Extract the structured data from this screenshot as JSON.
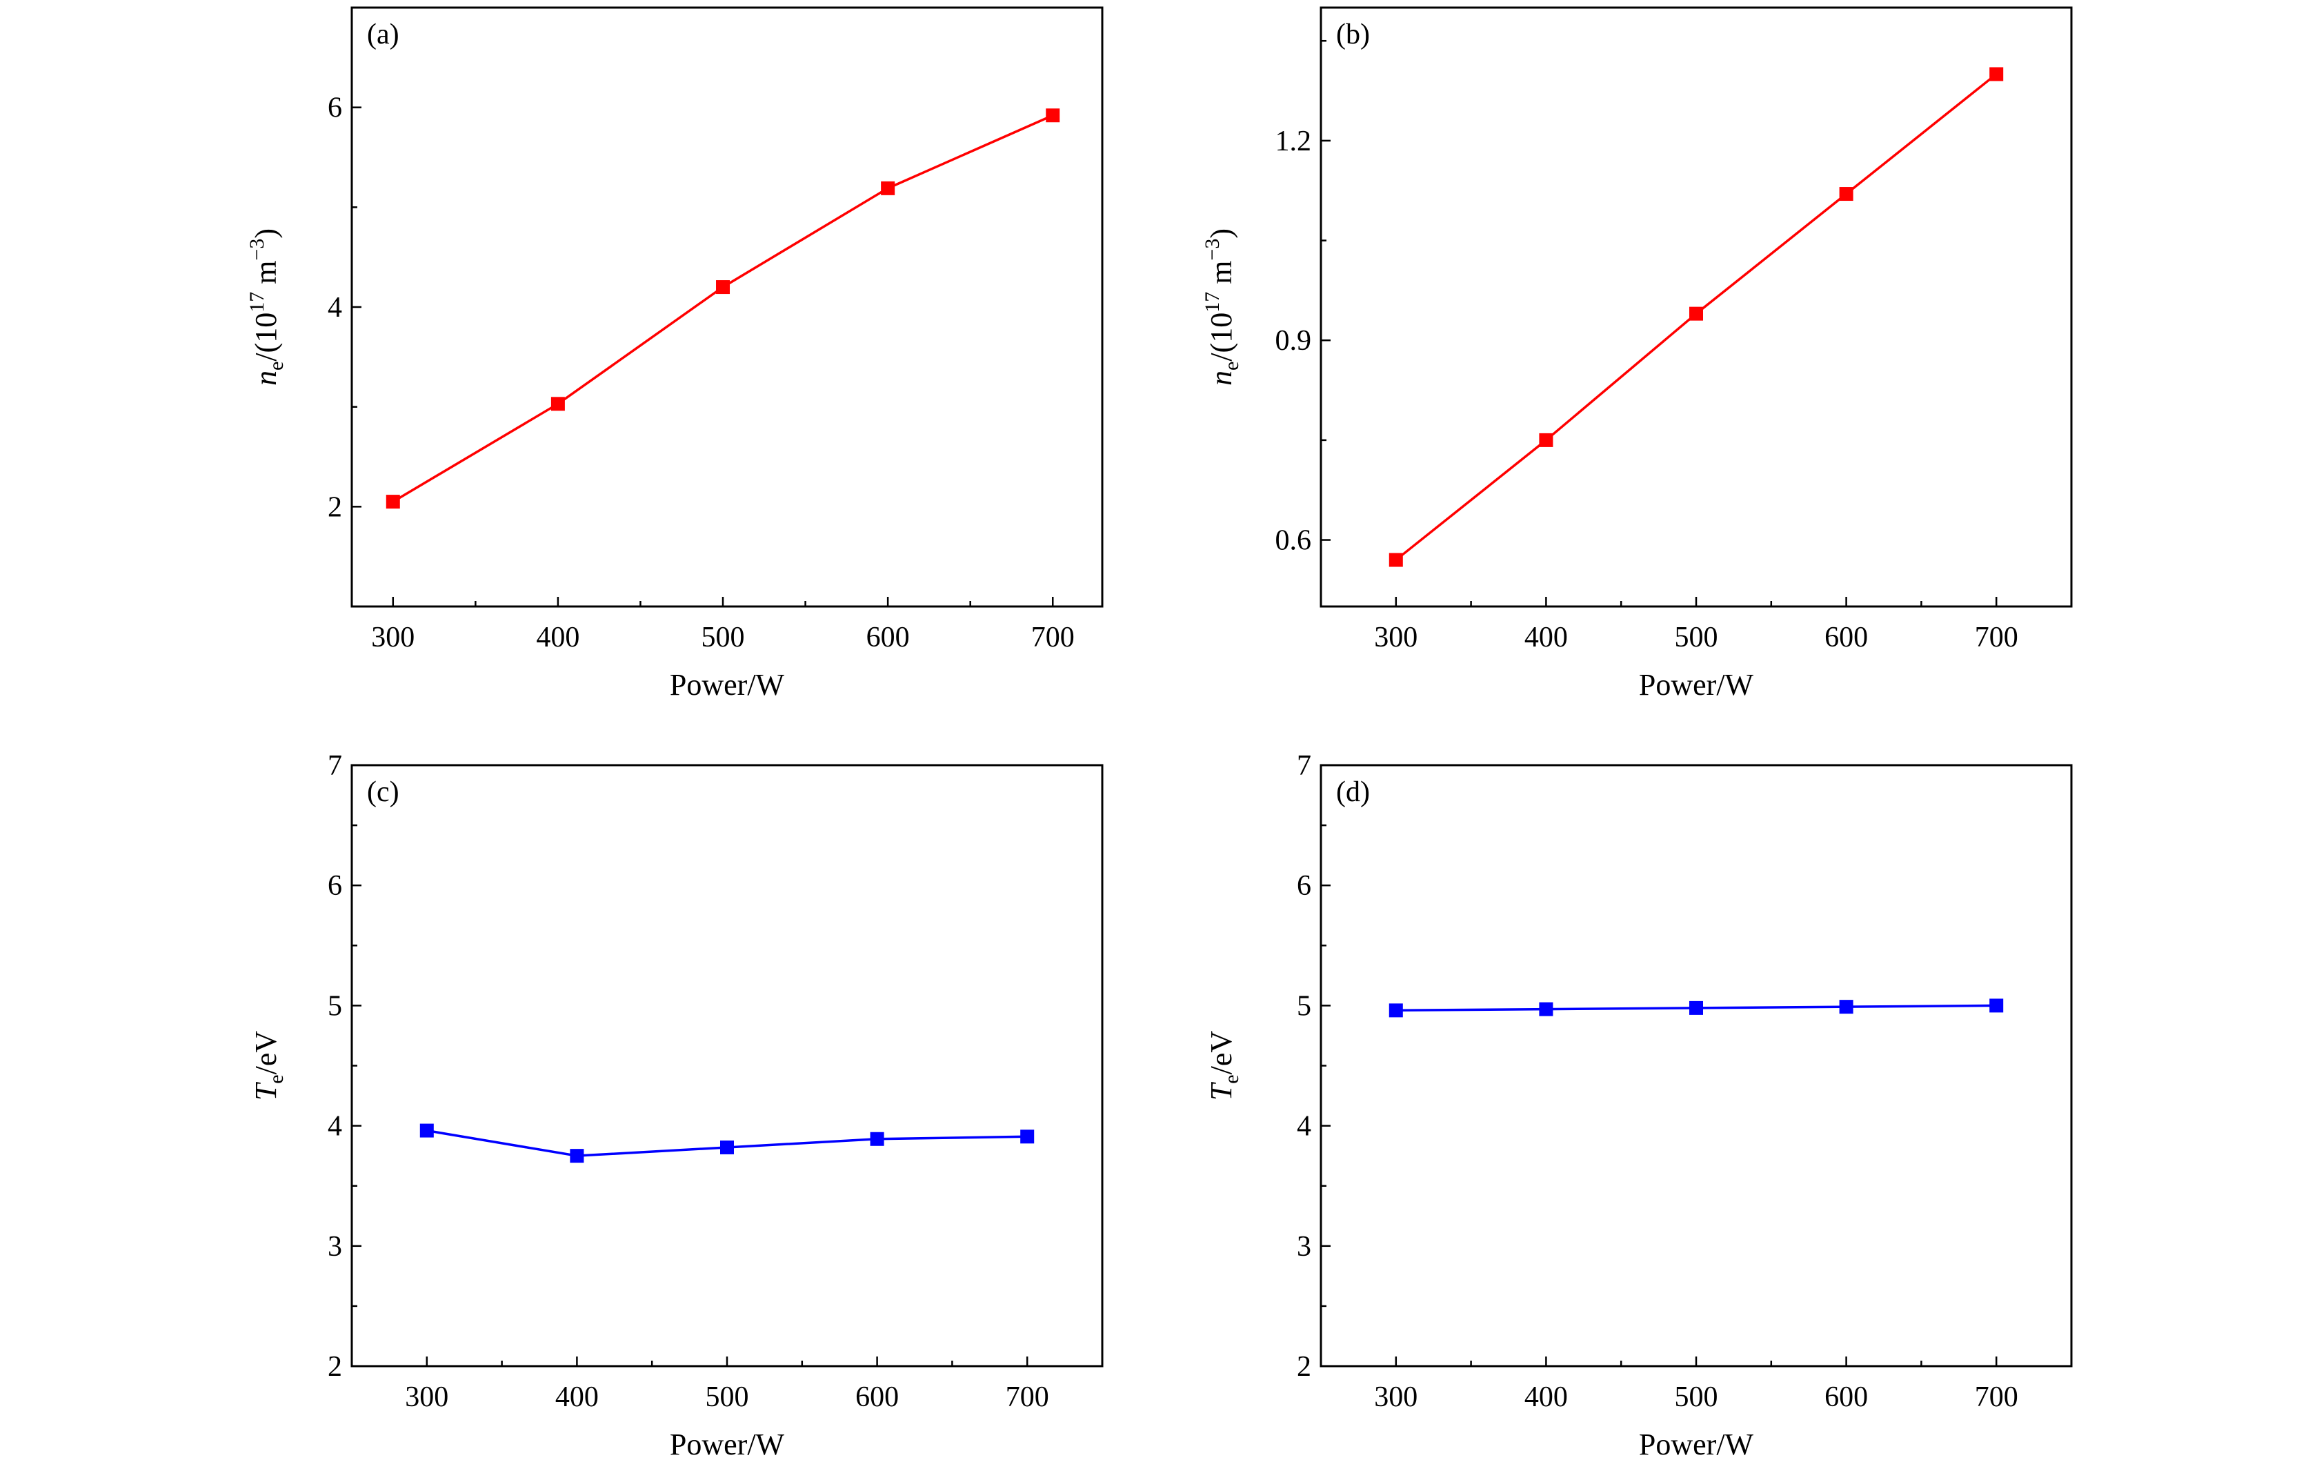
{
  "chart_data": [
    {
      "type": "line",
      "panel_label": "(a)",
      "x": [
        300,
        400,
        500,
        600,
        700
      ],
      "series": [
        {
          "values": [
            2.05,
            3.03,
            4.2,
            5.19,
            5.92
          ],
          "color": "#ff0000",
          "marker": "square"
        }
      ],
      "xlabel": "Power/W",
      "ylabel_parts": [
        {
          "t": "n",
          "style": "italic"
        },
        {
          "t": "e",
          "style": "sub"
        },
        {
          "t": "/(10"
        },
        {
          "t": "17",
          "style": "sup"
        },
        {
          "t": " m"
        },
        {
          "t": "−3",
          "style": "sup"
        },
        {
          "t": ")"
        }
      ],
      "xlim": [
        275,
        730
      ],
      "ylim": [
        1,
        7
      ],
      "xticks": [
        300,
        400,
        500,
        600,
        700
      ],
      "xminor": [
        350,
        450,
        550,
        650
      ],
      "yticks": [
        2,
        4,
        6
      ],
      "yminor": [
        3,
        5
      ],
      "ytick_labels": [
        "2",
        "4",
        "6"
      ],
      "grid": false
    },
    {
      "type": "line",
      "panel_label": "(b)",
      "x": [
        300,
        400,
        500,
        600,
        700
      ],
      "series": [
        {
          "values": [
            0.57,
            0.75,
            0.94,
            1.12,
            1.3
          ],
          "color": "#ff0000",
          "marker": "square"
        }
      ],
      "xlabel": "Power/W",
      "ylabel_parts": [
        {
          "t": "n",
          "style": "italic"
        },
        {
          "t": "e",
          "style": "sub"
        },
        {
          "t": "/(10"
        },
        {
          "t": "17",
          "style": "sup"
        },
        {
          "t": " m"
        },
        {
          "t": "−3",
          "style": "sup"
        },
        {
          "t": ")"
        }
      ],
      "xlim": [
        250,
        750
      ],
      "ylim": [
        0.5,
        1.4
      ],
      "xticks": [
        300,
        400,
        500,
        600,
        700
      ],
      "xminor": [
        350,
        450,
        550,
        650
      ],
      "yticks": [
        0.6,
        0.9,
        1.2
      ],
      "yminor": [
        0.75,
        1.05,
        1.35
      ],
      "ytick_labels": [
        "0.6",
        "0.9",
        "1.2"
      ],
      "grid": false
    },
    {
      "type": "line",
      "panel_label": "(c)",
      "x": [
        300,
        400,
        500,
        600,
        700
      ],
      "series": [
        {
          "values": [
            3.96,
            3.75,
            3.82,
            3.89,
            3.91
          ],
          "color": "#0000ff",
          "marker": "square"
        }
      ],
      "xlabel": "Power/W",
      "ylabel_parts": [
        {
          "t": "T",
          "style": "italic"
        },
        {
          "t": "e",
          "style": "sub"
        },
        {
          "t": "/eV"
        }
      ],
      "xlim": [
        250,
        750
      ],
      "ylim": [
        2,
        7
      ],
      "xticks": [
        300,
        400,
        500,
        600,
        700
      ],
      "xminor": [
        350,
        450,
        550,
        650
      ],
      "yticks": [
        2,
        3,
        4,
        5,
        6,
        7
      ],
      "yminor": [
        2.5,
        3.5,
        4.5,
        5.5,
        6.5
      ],
      "ytick_labels": [
        "2",
        "3",
        "4",
        "5",
        "6",
        "7"
      ],
      "grid": false
    },
    {
      "type": "line",
      "panel_label": "(d)",
      "x": [
        300,
        400,
        500,
        600,
        700
      ],
      "series": [
        {
          "values": [
            4.96,
            4.97,
            4.98,
            4.99,
            5.0
          ],
          "color": "#0000ff",
          "marker": "square"
        }
      ],
      "xlabel": "Power/W",
      "ylabel_parts": [
        {
          "t": "T",
          "style": "italic"
        },
        {
          "t": "e",
          "style": "sub"
        },
        {
          "t": "/eV"
        }
      ],
      "xlim": [
        250,
        750
      ],
      "ylim": [
        2,
        7
      ],
      "xticks": [
        300,
        400,
        500,
        600,
        700
      ],
      "xminor": [
        350,
        450,
        550,
        650
      ],
      "yticks": [
        2,
        3,
        4,
        5,
        6,
        7
      ],
      "yminor": [
        2.5,
        3.5,
        4.5,
        5.5,
        6.5
      ],
      "ytick_labels": [
        "2",
        "3",
        "4",
        "5",
        "6",
        "7"
      ],
      "grid": false
    }
  ]
}
